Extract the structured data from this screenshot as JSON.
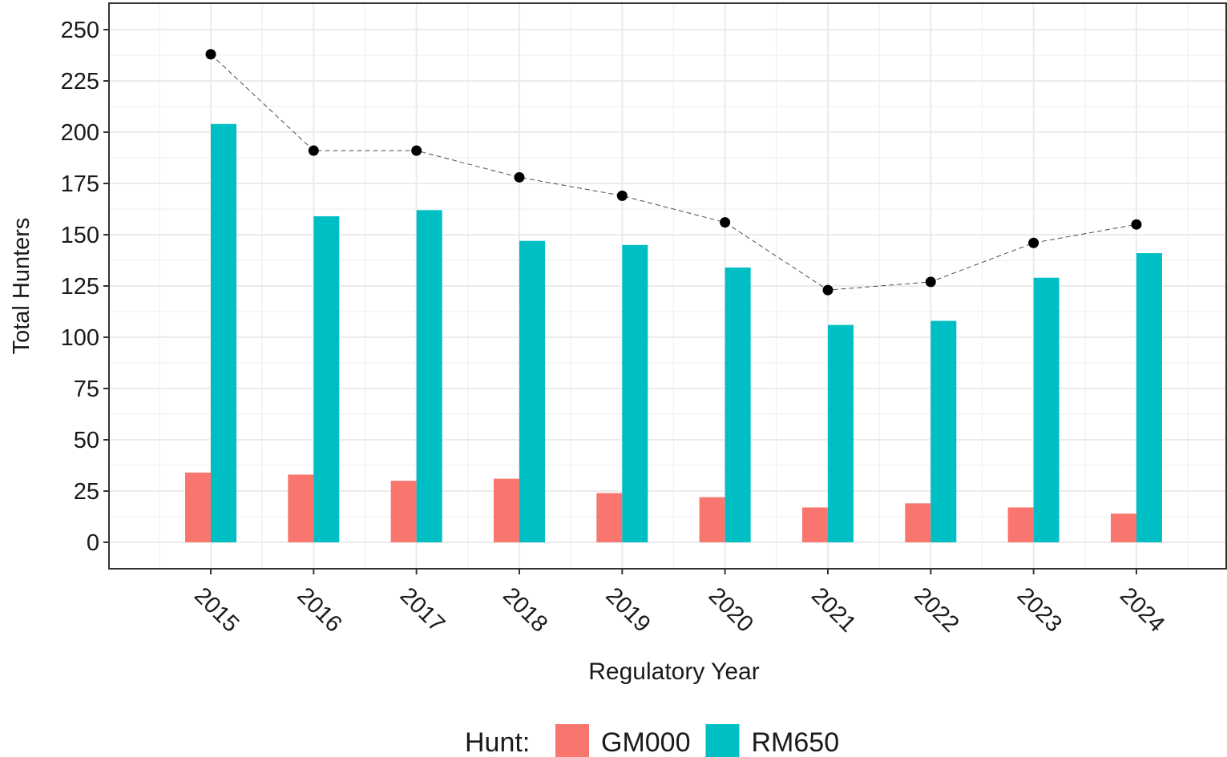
{
  "chart_data": {
    "type": "bar",
    "categories": [
      "2015",
      "2016",
      "2017",
      "2018",
      "2019",
      "2020",
      "2021",
      "2022",
      "2023",
      "2024"
    ],
    "series": [
      {
        "name": "GM000",
        "color": "#F8766D",
        "values": [
          34,
          33,
          30,
          31,
          24,
          22,
          17,
          19,
          17,
          14
        ]
      },
      {
        "name": "RM650",
        "color": "#00BFC4",
        "values": [
          204,
          159,
          162,
          147,
          145,
          134,
          106,
          108,
          129,
          141
        ]
      }
    ],
    "line_values": [
      238,
      191,
      191,
      178,
      169,
      156,
      123,
      127,
      146,
      155
    ],
    "line_color": "#000000",
    "x_label": "Regulatory Year",
    "y_label": "Total Hunters",
    "legend_title": "Hunt:",
    "ylim": [
      -12.9,
      262.9
    ],
    "yticks": [
      0,
      25,
      50,
      75,
      100,
      125,
      150,
      175,
      200,
      225,
      250
    ],
    "grid": true,
    "legend_position": "bottom"
  }
}
